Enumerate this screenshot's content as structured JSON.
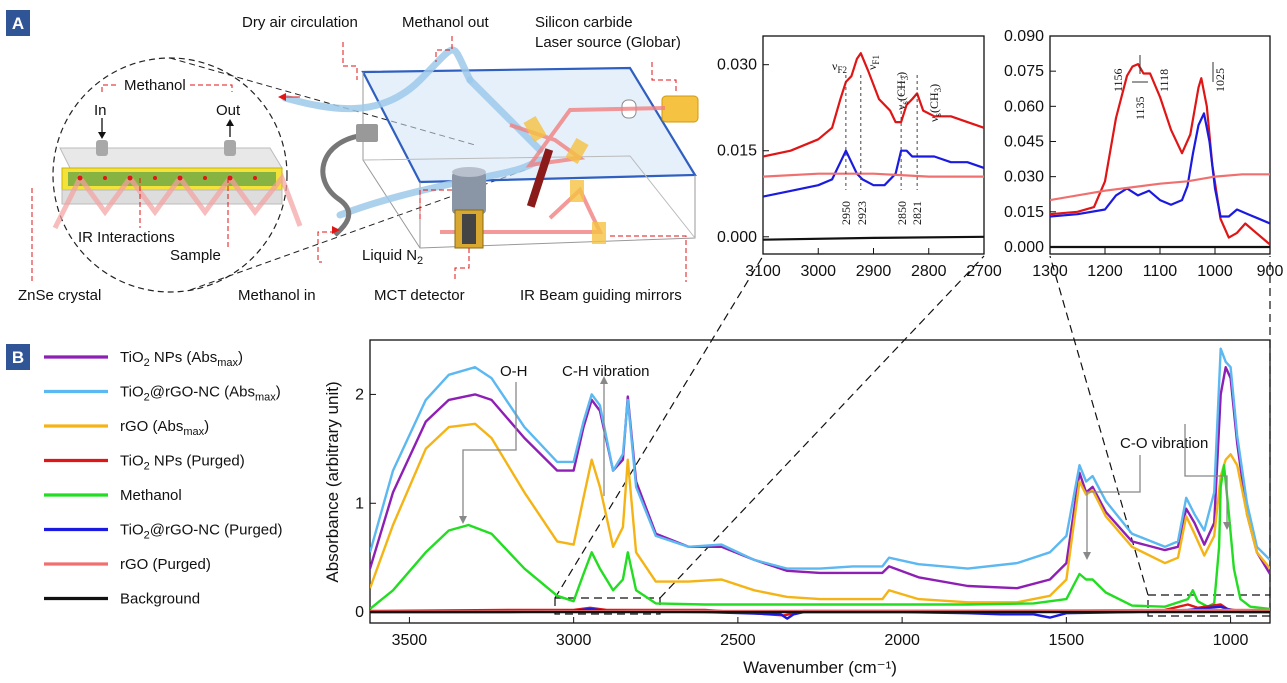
{
  "panels": {
    "a": "A",
    "b": "B"
  },
  "schematic": {
    "dry_air": "Dry air circulation",
    "methanol_out": "Methanol out",
    "silicon_carbide": "Silicon carbide",
    "laser_source": "Laser source (Globar)",
    "methanol_label": "Methanol",
    "in_label": "In",
    "out_label": "Out",
    "ir_interactions": "IR Interactions",
    "sample": "Sample",
    "znse": "ZnSe crystal",
    "methanol_in": "Methanol in",
    "liquid_n2": "Liquid N",
    "liquid_n2_sub": "2",
    "mct": "MCT detector",
    "mirrors": "IR Beam guiding mirrors"
  },
  "inset1_annotations": {
    "vf2": "ν",
    "vf2_sub": "F2",
    "vf1": "ν",
    "vf1_sub": "F1",
    "vs1": "ν",
    "vs1_sub": "s",
    "vs1_rest": "(CH",
    "vs1_sub2": "3",
    "vs1_end": ")",
    "vs2": "ν",
    "vs2_sub": "s",
    "vs2_rest": "(CH",
    "vs2_sub2": "3",
    "vs2_end": ")",
    "p2950": "2950",
    "p2923": "2923",
    "p2850": "2850",
    "p2821": "2821"
  },
  "inset2_annotations": {
    "p1156": "1156",
    "p1135": "1135",
    "p1118": "1118",
    "p1025": "1025"
  },
  "main_annotations": {
    "oh": "O-H",
    "ch": "C-H vibration",
    "co": "C-O vibration"
  },
  "legend": [
    {
      "name": "TiO",
      "sub": "2",
      "rest": " NPs (Abs",
      "sub2": "max",
      "end": ")",
      "color": "#8e1fb4"
    },
    {
      "name": "TiO",
      "sub": "2",
      "rest": "@rGO-NC (Abs",
      "sub2": "max",
      "end": ")",
      "color": "#5bb8f0"
    },
    {
      "name": "rGO (Abs",
      "sub": "max",
      "rest": ")",
      "sub2": "",
      "end": "",
      "color": "#f5b416"
    },
    {
      "name": "TiO",
      "sub": "2",
      "rest": " NPs (Purged)",
      "sub2": "",
      "end": "",
      "color": "#e01515"
    },
    {
      "name": "Methanol",
      "sub": "",
      "rest": "",
      "sub2": "",
      "end": "",
      "color": "#22dd22"
    },
    {
      "name": "TiO",
      "sub": "2",
      "rest": "@rGO-NC (Purged)",
      "sub2": "",
      "end": "",
      "color": "#1a1ae0"
    },
    {
      "name": "rGO (Purged)",
      "sub": "",
      "rest": "",
      "sub2": "",
      "end": "",
      "color": "#f07070"
    },
    {
      "name": "Background",
      "sub": "",
      "rest": "",
      "sub2": "",
      "end": "",
      "color": "#111111"
    }
  ],
  "chart_data": [
    {
      "type": "line",
      "xlabel": "Wavenumber (cm⁻¹)",
      "ylabel": "Absorbance (arbitrary unit)",
      "xlim": [
        3620,
        880
      ],
      "ylim": [
        -0.1,
        2.5
      ],
      "xticks": [
        3500,
        3000,
        2500,
        2000,
        1500,
        1000
      ],
      "xtick_labels": [
        "3500",
        "3000",
        "2500",
        "2000",
        "1500",
        "1000"
      ],
      "yticks": [
        0,
        1,
        2
      ],
      "ytick_labels": [
        "0",
        "1",
        "2"
      ],
      "series": [
        {
          "name": "TiO2 NPs (Absmax)",
          "color": "#8e1fb4",
          "x": [
            3620,
            3550,
            3450,
            3380,
            3300,
            3250,
            3150,
            3050,
            3000,
            2970,
            2945,
            2920,
            2880,
            2850,
            2835,
            2810,
            2750,
            2650,
            2550,
            2450,
            2350,
            2250,
            2150,
            2060,
            2040,
            1950,
            1800,
            1650,
            1550,
            1500,
            1460,
            1440,
            1420,
            1380,
            1300,
            1200,
            1160,
            1135,
            1110,
            1080,
            1050,
            1030,
            1015,
            1000,
            980,
            950,
            920,
            880
          ],
          "y": [
            0.4,
            1.1,
            1.75,
            1.95,
            2.0,
            1.95,
            1.6,
            1.3,
            1.3,
            1.7,
            1.95,
            1.85,
            1.3,
            1.4,
            1.98,
            1.2,
            0.72,
            0.6,
            0.6,
            0.48,
            0.38,
            0.36,
            0.36,
            0.36,
            0.42,
            0.32,
            0.24,
            0.22,
            0.3,
            0.45,
            1.28,
            1.1,
            1.15,
            0.92,
            0.65,
            0.57,
            0.6,
            0.95,
            0.82,
            0.62,
            0.82,
            2.0,
            2.25,
            2.15,
            1.55,
            0.9,
            0.55,
            0.35
          ]
        },
        {
          "name": "TiO2@rGO-NC (Absmax)",
          "color": "#5bb8f0",
          "x": [
            3620,
            3550,
            3450,
            3380,
            3300,
            3250,
            3150,
            3050,
            3000,
            2970,
            2945,
            2920,
            2880,
            2850,
            2835,
            2810,
            2750,
            2650,
            2550,
            2450,
            2350,
            2250,
            2150,
            2060,
            2040,
            1950,
            1800,
            1650,
            1550,
            1500,
            1460,
            1440,
            1420,
            1380,
            1300,
            1200,
            1160,
            1135,
            1110,
            1080,
            1050,
            1030,
            1015,
            1000,
            980,
            950,
            920,
            880
          ],
          "y": [
            0.55,
            1.3,
            1.95,
            2.18,
            2.25,
            2.15,
            1.7,
            1.38,
            1.38,
            1.75,
            2.0,
            1.9,
            1.3,
            1.45,
            1.95,
            1.15,
            0.7,
            0.6,
            0.62,
            0.48,
            0.4,
            0.4,
            0.42,
            0.42,
            0.5,
            0.44,
            0.4,
            0.45,
            0.55,
            0.7,
            1.35,
            1.2,
            1.25,
            1.02,
            0.72,
            0.6,
            0.65,
            1.05,
            0.9,
            0.75,
            1.1,
            2.42,
            2.3,
            2.25,
            1.62,
            1.0,
            0.6,
            0.48
          ]
        },
        {
          "name": "rGO (Absmax)",
          "color": "#f5b416",
          "x": [
            3620,
            3550,
            3450,
            3380,
            3300,
            3250,
            3150,
            3050,
            3000,
            2970,
            2945,
            2920,
            2880,
            2850,
            2835,
            2810,
            2750,
            2650,
            2550,
            2450,
            2350,
            2250,
            2150,
            2060,
            2040,
            1950,
            1800,
            1650,
            1550,
            1500,
            1460,
            1440,
            1420,
            1380,
            1300,
            1200,
            1160,
            1135,
            1110,
            1080,
            1050,
            1030,
            1015,
            1000,
            980,
            950,
            920,
            880
          ],
          "y": [
            0.22,
            0.8,
            1.5,
            1.7,
            1.73,
            1.6,
            1.1,
            0.65,
            0.62,
            1.05,
            1.4,
            1.15,
            0.6,
            0.78,
            1.4,
            0.55,
            0.28,
            0.28,
            0.3,
            0.2,
            0.14,
            0.12,
            0.12,
            0.12,
            0.2,
            0.12,
            0.09,
            0.09,
            0.15,
            0.3,
            1.2,
            1.08,
            1.12,
            0.88,
            0.6,
            0.45,
            0.5,
            0.88,
            0.72,
            0.52,
            0.7,
            1.25,
            1.4,
            1.45,
            1.35,
            0.9,
            0.55,
            0.4
          ]
        },
        {
          "name": "Methanol",
          "color": "#22dd22",
          "x": [
            3620,
            3550,
            3450,
            3380,
            3320,
            3250,
            3150,
            3050,
            3000,
            2970,
            2945,
            2920,
            2880,
            2850,
            2835,
            2810,
            2750,
            2600,
            2400,
            2200,
            2000,
            1800,
            1600,
            1500,
            1460,
            1440,
            1420,
            1380,
            1300,
            1200,
            1130,
            1115,
            1100,
            1070,
            1050,
            1035,
            1030,
            1020,
            1005,
            990,
            970,
            940,
            880
          ],
          "y": [
            0.03,
            0.2,
            0.55,
            0.75,
            0.8,
            0.72,
            0.4,
            0.15,
            0.1,
            0.35,
            0.55,
            0.4,
            0.2,
            0.3,
            0.55,
            0.2,
            0.08,
            0.07,
            0.07,
            0.07,
            0.07,
            0.07,
            0.08,
            0.12,
            0.35,
            0.3,
            0.3,
            0.18,
            0.06,
            0.05,
            0.12,
            0.2,
            0.1,
            0.05,
            0.08,
            0.6,
            1.15,
            1.35,
            0.9,
            0.4,
            0.12,
            0.05,
            0.03
          ]
        },
        {
          "name": "TiO2 NPs (Purged)",
          "color": "#e01515",
          "x": [
            3620,
            3200,
            3000,
            2950,
            2900,
            2600,
            2360,
            2300,
            2000,
            1500,
            1200,
            1130,
            1100,
            1030,
            1010,
            970,
            880
          ],
          "y": [
            0.01,
            0.02,
            0.02,
            0.04,
            0.02,
            0.02,
            -0.03,
            0.01,
            0.01,
            0.01,
            0.02,
            0.07,
            0.04,
            0.07,
            0.03,
            0.01,
            0.0
          ]
        },
        {
          "name": "TiO2@rGO-NC (Purged)",
          "color": "#1a1ae0",
          "x": [
            3620,
            3200,
            3000,
            2950,
            2900,
            2600,
            2370,
            2350,
            2330,
            2300,
            2000,
            1800,
            1700,
            1600,
            1550,
            1500,
            1300,
            1130,
            1030,
            1010,
            970,
            880
          ],
          "y": [
            0.0,
            0.0,
            0.01,
            0.03,
            0.01,
            0.0,
            -0.02,
            -0.06,
            -0.02,
            0.0,
            0.0,
            -0.01,
            -0.02,
            -0.02,
            -0.05,
            -0.01,
            0.0,
            0.02,
            0.05,
            0.03,
            0.0,
            0.0
          ]
        },
        {
          "name": "rGO (Purged)",
          "color": "#f07070",
          "x": [
            3620,
            3000,
            2500,
            2000,
            1500,
            1000,
            880
          ],
          "y": [
            0.005,
            0.008,
            0.01,
            0.012,
            0.015,
            0.02,
            0.02
          ]
        },
        {
          "name": "Background",
          "color": "#111111",
          "x": [
            3620,
            2500,
            1500,
            880
          ],
          "y": [
            0.0,
            0.0,
            0.0,
            0.0
          ]
        }
      ]
    },
    {
      "type": "line",
      "xlim": [
        3100,
        2700
      ],
      "ylim": [
        -0.003,
        0.035
      ],
      "xticks": [
        3100,
        3000,
        2900,
        2800,
        2700
      ],
      "xtick_labels": [
        "3100",
        "3000",
        "2900",
        "2800",
        "2700"
      ],
      "yticks": [
        0.0,
        0.015,
        0.03
      ],
      "ytick_labels": [
        "0.000",
        "0.015",
        "0.030"
      ],
      "series": [
        {
          "name": "TiO2 NPs (Purged)",
          "color": "#e01515",
          "x": [
            3100,
            3050,
            3000,
            2975,
            2960,
            2950,
            2940,
            2930,
            2923,
            2910,
            2890,
            2870,
            2860,
            2850,
            2840,
            2830,
            2821,
            2810,
            2790,
            2760,
            2730,
            2700
          ],
          "y": [
            0.014,
            0.015,
            0.017,
            0.019,
            0.024,
            0.027,
            0.028,
            0.031,
            0.032,
            0.029,
            0.024,
            0.022,
            0.02,
            0.02,
            0.023,
            0.024,
            0.025,
            0.022,
            0.021,
            0.021,
            0.02,
            0.019
          ]
        },
        {
          "name": "TiO2@rGO-NC (Purged)",
          "color": "#1a1ae0",
          "x": [
            3100,
            3050,
            3000,
            2975,
            2960,
            2950,
            2940,
            2930,
            2920,
            2900,
            2880,
            2860,
            2850,
            2840,
            2830,
            2820,
            2810,
            2790,
            2760,
            2730,
            2700
          ],
          "y": [
            0.007,
            0.008,
            0.009,
            0.01,
            0.013,
            0.015,
            0.013,
            0.011,
            0.01,
            0.009,
            0.009,
            0.011,
            0.015,
            0.015,
            0.014,
            0.014,
            0.014,
            0.014,
            0.013,
            0.013,
            0.012
          ]
        },
        {
          "name": "rGO (Purged)",
          "color": "#f07070",
          "x": [
            3100,
            3000,
            2900,
            2800,
            2700
          ],
          "y": [
            0.0105,
            0.011,
            0.011,
            0.0105,
            0.0105
          ]
        },
        {
          "name": "Background",
          "color": "#111111",
          "x": [
            3100,
            2900,
            2700
          ],
          "y": [
            -0.0005,
            -0.0002,
            0.0
          ]
        }
      ]
    },
    {
      "type": "line",
      "xlim": [
        1300,
        900
      ],
      "ylim": [
        -0.003,
        0.09
      ],
      "xticks": [
        1300,
        1200,
        1100,
        1000,
        900
      ],
      "xtick_labels": [
        "1300",
        "1200",
        "1100",
        "1000",
        "900"
      ],
      "yticks": [
        0.0,
        0.015,
        0.03,
        0.045,
        0.06,
        0.075,
        0.09
      ],
      "ytick_labels": [
        "0.000",
        "0.015",
        "0.030",
        "0.045",
        "0.060",
        "0.075",
        "0.090"
      ],
      "series": [
        {
          "name": "TiO2 NPs (Purged)",
          "color": "#e01515",
          "x": [
            1300,
            1250,
            1220,
            1200,
            1180,
            1160,
            1150,
            1140,
            1130,
            1118,
            1100,
            1080,
            1060,
            1045,
            1030,
            1025,
            1015,
            1005,
            990,
            975,
            960,
            945,
            930,
            910,
            900
          ],
          "y": [
            0.014,
            0.015,
            0.017,
            0.028,
            0.055,
            0.073,
            0.077,
            0.078,
            0.074,
            0.074,
            0.064,
            0.05,
            0.04,
            0.048,
            0.068,
            0.072,
            0.06,
            0.035,
            0.012,
            0.004,
            0.006,
            0.01,
            0.007,
            0.003,
            0.001
          ]
        },
        {
          "name": "TiO2@rGO-NC (Purged)",
          "color": "#1a1ae0",
          "x": [
            1300,
            1250,
            1200,
            1180,
            1160,
            1140,
            1120,
            1100,
            1080,
            1060,
            1050,
            1040,
            1030,
            1020,
            1010,
            1000,
            990,
            975,
            960,
            940,
            920,
            900
          ],
          "y": [
            0.013,
            0.014,
            0.016,
            0.022,
            0.025,
            0.022,
            0.024,
            0.02,
            0.018,
            0.02,
            0.026,
            0.04,
            0.052,
            0.057,
            0.045,
            0.025,
            0.013,
            0.013,
            0.016,
            0.014,
            0.012,
            0.01
          ]
        },
        {
          "name": "rGO (Purged)",
          "color": "#f07070",
          "x": [
            1300,
            1200,
            1100,
            1050,
            1000,
            950,
            900
          ],
          "y": [
            0.02,
            0.024,
            0.027,
            0.028,
            0.03,
            0.031,
            0.031
          ]
        },
        {
          "name": "Background",
          "color": "#111111",
          "x": [
            1300,
            1100,
            900
          ],
          "y": [
            0.0,
            0.0,
            0.0
          ]
        }
      ]
    }
  ]
}
